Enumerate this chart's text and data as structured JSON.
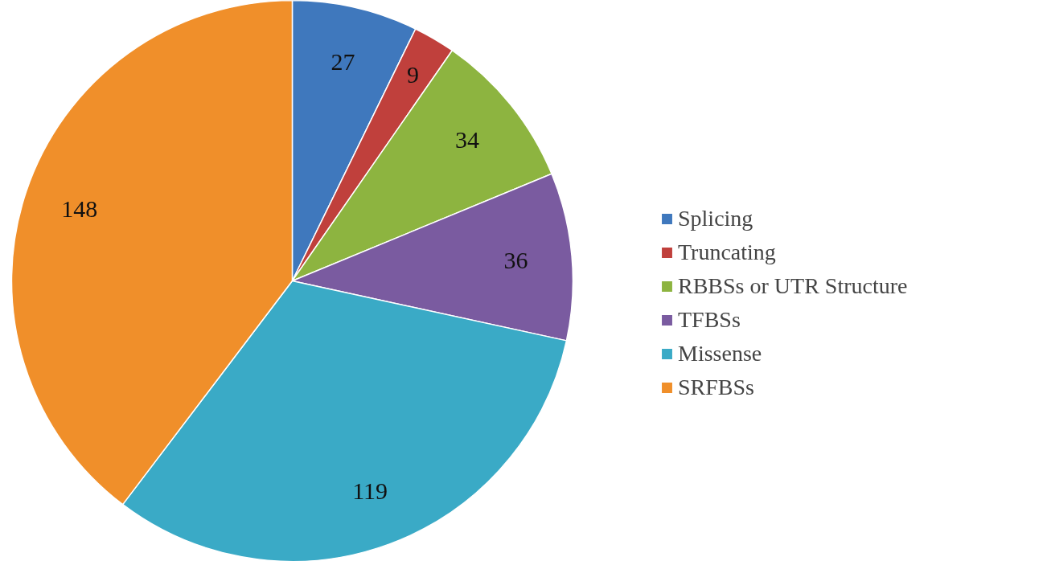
{
  "chart_data": {
    "type": "pie",
    "categories": [
      "Splicing",
      "Truncating",
      "RBBSs or UTR Structure",
      "TFBSs",
      "Missense",
      "SRFBSs"
    ],
    "values": [
      27,
      9,
      34,
      36,
      119,
      148
    ],
    "colors": [
      "#3f78bd",
      "#c0403c",
      "#8db440",
      "#7a5ba0",
      "#3aaac6",
      "#f08f2a"
    ],
    "data_labels": true,
    "legend": "right"
  }
}
